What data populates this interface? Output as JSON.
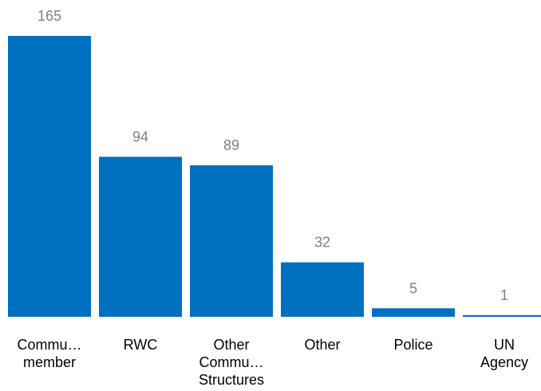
{
  "chart_data": {
    "type": "bar",
    "title": "",
    "xlabel": "",
    "ylabel": "",
    "categories": [
      [
        "Commu…",
        "member"
      ],
      [
        "RWC"
      ],
      [
        "Other",
        "Commu…",
        "Structures"
      ],
      [
        "Other"
      ],
      [
        "Police"
      ],
      [
        "UN",
        "Agency"
      ]
    ],
    "values": [
      165,
      94,
      89,
      32,
      5,
      1
    ],
    "ylim": [
      0,
      165
    ],
    "grid": false,
    "legend": "none",
    "colors": {
      "bar": "#0070c0",
      "value_label": "#808080",
      "category_label": "#000000"
    }
  }
}
